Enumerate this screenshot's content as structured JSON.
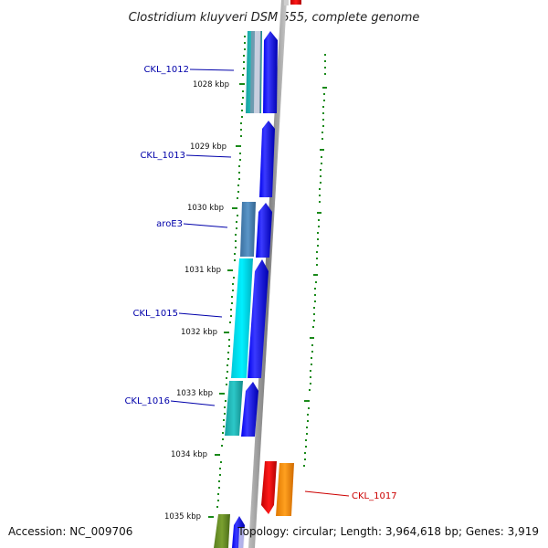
{
  "title": "Clostridium kluyveri DSM 555, complete genome",
  "footer": {
    "accession": "Accession: NC_009706",
    "summary": "Topology: circular; Length: 3,964,618 bp; Genes: 3,919"
  },
  "colors": {
    "forward_strand": "#0000ee",
    "reverse_strand_cyan": "#00e5ee",
    "reverse_strand_teal": "#1cb8b8",
    "reverse_strand_steel": "#4682b4",
    "highlight_red": "#ee0000",
    "highlight_orange": "#ff8c00",
    "tick_green": "#1a8a1a",
    "label_blue": "#0000aa",
    "label_red": "#cc0000",
    "backbone": "#888888"
  },
  "scale_ticks": [
    {
      "label": "1028 kbp"
    },
    {
      "label": "1029 kbp"
    },
    {
      "label": "1030 kbp"
    },
    {
      "label": "1031 kbp"
    },
    {
      "label": "1032 kbp"
    },
    {
      "label": "1033 kbp"
    },
    {
      "label": "1034 kbp"
    },
    {
      "label": "1035 kbp"
    }
  ],
  "gene_labels": [
    {
      "name": "CKL_1012",
      "color": "#0000aa"
    },
    {
      "name": "CKL_1013",
      "color": "#0000aa"
    },
    {
      "name": "aroE3",
      "color": "#0000aa"
    },
    {
      "name": "CKL_1015",
      "color": "#0000aa"
    },
    {
      "name": "CKL_1016",
      "color": "#0000aa"
    },
    {
      "name": "CKL_1017",
      "color": "#cc0000"
    }
  ]
}
